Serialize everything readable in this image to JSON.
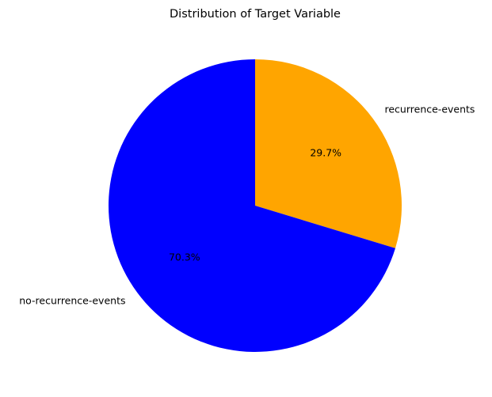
{
  "chart_data": {
    "type": "pie",
    "title": "Distribution of Target Variable",
    "slices": [
      {
        "label": "recurrence-events",
        "value": 29.7,
        "display": "29.7%",
        "color": "#ffa500"
      },
      {
        "label": "no-recurrence-events",
        "value": 70.3,
        "display": "70.3%",
        "color": "#0000ff"
      }
    ],
    "start_angle_deg": 90,
    "direction": "clockwise",
    "legend": false
  }
}
